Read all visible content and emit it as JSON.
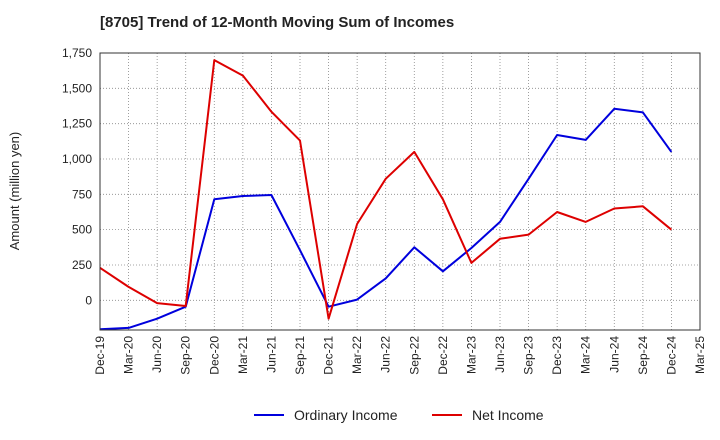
{
  "chart_data": {
    "type": "line",
    "title": "[8705]  Trend of 12-Month Moving Sum of Incomes",
    "xlabel": "",
    "ylabel": "Amount (million yen)",
    "ylim": [
      -210,
      1750
    ],
    "yticks": [
      0,
      250,
      500,
      750,
      "1,000",
      "1,250",
      "1,500",
      "1,750"
    ],
    "ytick_values": [
      0,
      250,
      500,
      750,
      1000,
      1250,
      1500,
      1750
    ],
    "grid": true,
    "legend_position": "bottom-center",
    "categories": [
      "Dec-19",
      "Mar-20",
      "Jun-20",
      "Sep-20",
      "Dec-20",
      "Mar-21",
      "Jun-21",
      "Sep-21",
      "Dec-21",
      "Mar-22",
      "Jun-22",
      "Sep-22",
      "Dec-22",
      "Mar-23",
      "Jun-23",
      "Sep-23",
      "Dec-23",
      "Mar-24",
      "Jun-24",
      "Sep-24",
      "Dec-24",
      "Mar-25"
    ],
    "series": [
      {
        "name": "Ordinary Income",
        "color": "#0000dd",
        "values": [
          -205,
          -195,
          -130,
          -45,
          715,
          738,
          745,
          355,
          -45,
          5,
          155,
          375,
          205,
          370,
          555,
          860,
          1170,
          1135,
          1355,
          1330,
          1050,
          null
        ]
      },
      {
        "name": "Net Income",
        "color": "#dd0000",
        "values": [
          230,
          95,
          -20,
          -40,
          1700,
          1590,
          1335,
          1130,
          -130,
          540,
          860,
          1050,
          715,
          265,
          435,
          465,
          625,
          555,
          650,
          665,
          500,
          null
        ]
      }
    ]
  }
}
